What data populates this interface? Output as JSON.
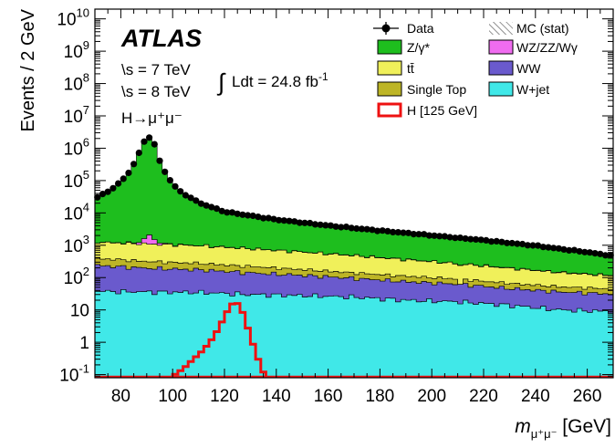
{
  "chart_data": {
    "type": "stacked-histogram",
    "experiment": "ATLAS",
    "lines": [
      "\\s = 7 TeV",
      "\\s = 8 TeV"
    ],
    "lumi_text": "Ldt = 24.8 fb",
    "lumi_exp": "-1",
    "channel_text": "H→μ⁺μ⁻",
    "ylabel": "Events / 2 GeV",
    "xlabel_main": "m",
    "xlabel_sub": "μ⁺μ⁻",
    "xlabel_unit": "[GeV]",
    "x_range": [
      70,
      270
    ],
    "x_ticks": [
      80,
      100,
      120,
      140,
      160,
      180,
      200,
      220,
      240,
      260
    ],
    "y_scale": "log",
    "y_range": [
      0.08,
      20000000000
    ],
    "y_ticks": [
      {
        "value": 0.1,
        "base": "10",
        "exp": "-1"
      },
      {
        "value": 1,
        "label": "1"
      },
      {
        "value": 10,
        "label": "10"
      },
      {
        "value": 100,
        "base": "10",
        "exp": "2"
      },
      {
        "value": 1000,
        "base": "10",
        "exp": "3"
      },
      {
        "value": 10000,
        "base": "10",
        "exp": "4"
      },
      {
        "value": 100000,
        "base": "10",
        "exp": "5"
      },
      {
        "value": 1000000,
        "base": "10",
        "exp": "6"
      },
      {
        "value": 10000000,
        "base": "10",
        "exp": "7"
      },
      {
        "value": 100000000,
        "base": "10",
        "exp": "8"
      },
      {
        "value": 1000000000,
        "base": "10",
        "exp": "9"
      },
      {
        "value": 10000000000,
        "base": "10",
        "exp": "10"
      }
    ],
    "bin_width": 2,
    "series": [
      {
        "name": "W+jet",
        "color": "#40e8e8",
        "anchors": [
          [
            70,
            38
          ],
          [
            90,
            36
          ],
          [
            110,
            35
          ],
          [
            130,
            30
          ],
          [
            150,
            28
          ],
          [
            170,
            25
          ],
          [
            190,
            20
          ],
          [
            210,
            18
          ],
          [
            230,
            14
          ],
          [
            250,
            10
          ],
          [
            270,
            9
          ]
        ]
      },
      {
        "name": "WW",
        "color": "#6a5acd",
        "anchors": [
          [
            70,
            200
          ],
          [
            90,
            160
          ],
          [
            110,
            140
          ],
          [
            130,
            110
          ],
          [
            150,
            90
          ],
          [
            170,
            70
          ],
          [
            190,
            55
          ],
          [
            210,
            45
          ],
          [
            230,
            32
          ],
          [
            250,
            26
          ],
          [
            270,
            22
          ]
        ]
      },
      {
        "name": "Single Top",
        "color": "#bdb526",
        "anchors": [
          [
            70,
            160
          ],
          [
            90,
            120
          ],
          [
            110,
            100
          ],
          [
            130,
            80
          ],
          [
            150,
            60
          ],
          [
            170,
            45
          ],
          [
            190,
            35
          ],
          [
            210,
            28
          ],
          [
            230,
            20
          ],
          [
            250,
            16
          ],
          [
            270,
            13
          ]
        ]
      },
      {
        "name": "tt̄",
        "color": "#f0f05a",
        "anchors": [
          [
            70,
            850
          ],
          [
            90,
            780
          ],
          [
            110,
            700
          ],
          [
            130,
            560
          ],
          [
            150,
            440
          ],
          [
            170,
            340
          ],
          [
            190,
            250
          ],
          [
            210,
            180
          ],
          [
            230,
            130
          ],
          [
            250,
            90
          ],
          [
            270,
            70
          ]
        ]
      },
      {
        "name": "WZ/ZZ/Wγ",
        "color": "#f06cf0",
        "anchors": [
          [
            70,
            14
          ],
          [
            84,
            40
          ],
          [
            88,
            250
          ],
          [
            91,
            1100
          ],
          [
            94,
            250
          ],
          [
            98,
            40
          ],
          [
            106,
            14
          ],
          [
            130,
            9
          ],
          [
            170,
            6
          ],
          [
            220,
            4
          ],
          [
            270,
            3
          ]
        ]
      },
      {
        "name": "Z/γ*",
        "color": "#1ebe1e",
        "anchors": [
          [
            70,
            26000
          ],
          [
            76,
            50000
          ],
          [
            80,
            90000
          ],
          [
            84,
            220000
          ],
          [
            87,
            700000
          ],
          [
            89,
            1600000
          ],
          [
            91,
            2200000
          ],
          [
            93,
            1300000
          ],
          [
            95,
            400000
          ],
          [
            98,
            130000
          ],
          [
            102,
            50000
          ],
          [
            110,
            20000
          ],
          [
            120,
            10000
          ],
          [
            140,
            5500
          ],
          [
            160,
            3500
          ],
          [
            180,
            2400
          ],
          [
            200,
            1700
          ],
          [
            220,
            1200
          ],
          [
            240,
            800
          ],
          [
            260,
            480
          ],
          [
            270,
            350
          ]
        ]
      }
    ],
    "higgs_signal": {
      "name": "H [125 GeV]",
      "color": "#ee1111",
      "anchors": [
        [
          97,
          0.05
        ],
        [
          100,
          0.09
        ],
        [
          104,
          0.15
        ],
        [
          108,
          0.3
        ],
        [
          112,
          0.6
        ],
        [
          116,
          1.5
        ],
        [
          118,
          3
        ],
        [
          120,
          6
        ],
        [
          122,
          13
        ],
        [
          124,
          18
        ],
        [
          126,
          14
        ],
        [
          128,
          5
        ],
        [
          130,
          1.5
        ],
        [
          132,
          0.5
        ],
        [
          134,
          0.18
        ],
        [
          136,
          0.08
        ]
      ]
    },
    "data_points": {
      "name": "Data"
    },
    "legend": [
      {
        "name": "Data",
        "kind": "marker"
      },
      {
        "name": "MC (stat)",
        "kind": "hatch"
      },
      {
        "name": "Z/γ*",
        "color": "#1ebe1e",
        "kind": "box"
      },
      {
        "name": "WZ/ZZ/Wγ",
        "color": "#f06cf0",
        "kind": "box"
      },
      {
        "name": "tt̄",
        "color": "#f0f05a",
        "kind": "box"
      },
      {
        "name": "WW",
        "color": "#6a5acd",
        "kind": "box"
      },
      {
        "name": "Single Top",
        "color": "#bdb526",
        "kind": "box"
      },
      {
        "name": "W+jet",
        "color": "#40e8e8",
        "kind": "box"
      },
      {
        "name": "H [125 GeV]",
        "color": "#ee1111",
        "kind": "line-box"
      }
    ]
  }
}
